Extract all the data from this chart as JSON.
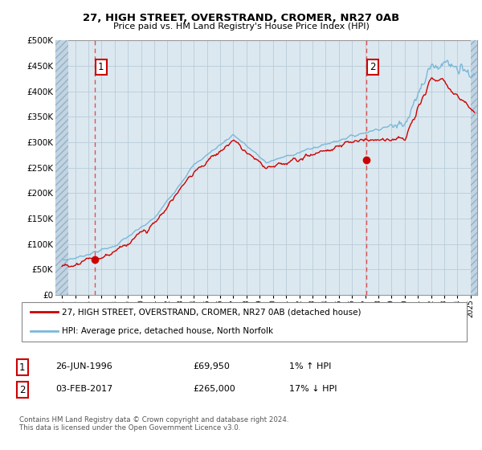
{
  "title1": "27, HIGH STREET, OVERSTRAND, CROMER, NR27 0AB",
  "title2": "Price paid vs. HM Land Registry's House Price Index (HPI)",
  "ylabel_ticks": [
    "£0",
    "£50K",
    "£100K",
    "£150K",
    "£200K",
    "£250K",
    "£300K",
    "£350K",
    "£400K",
    "£450K",
    "£500K"
  ],
  "ytick_values": [
    0,
    50000,
    100000,
    150000,
    200000,
    250000,
    300000,
    350000,
    400000,
    450000,
    500000
  ],
  "ylim": [
    0,
    500000
  ],
  "xlim_start": 1993.5,
  "xlim_end": 2025.5,
  "sale1_date": 1996.487,
  "sale1_price": 69950,
  "sale1_label": "1",
  "sale2_date": 2017.087,
  "sale2_price": 265000,
  "sale2_label": "2",
  "legend_line1": "27, HIGH STREET, OVERSTRAND, CROMER, NR27 0AB (detached house)",
  "legend_line2": "HPI: Average price, detached house, North Norfolk",
  "info1_num": "1",
  "info1_date": "26-JUN-1996",
  "info1_price": "£69,950",
  "info1_hpi": "1% ↑ HPI",
  "info2_num": "2",
  "info2_date": "03-FEB-2017",
  "info2_price": "£265,000",
  "info2_hpi": "17% ↓ HPI",
  "footer": "Contains HM Land Registry data © Crown copyright and database right 2024.\nThis data is licensed under the Open Government Licence v3.0.",
  "hpi_color": "#7ab8d9",
  "price_color": "#cc0000",
  "plot_bg": "#dce8f0",
  "hatch_color": "#c0d4e4",
  "grid_color": "#b8ccd8",
  "vline_color": "#e05050",
  "hatch_left_end": 1994.5,
  "hatch_right_start": 2025.0,
  "data_start": 1994.0
}
